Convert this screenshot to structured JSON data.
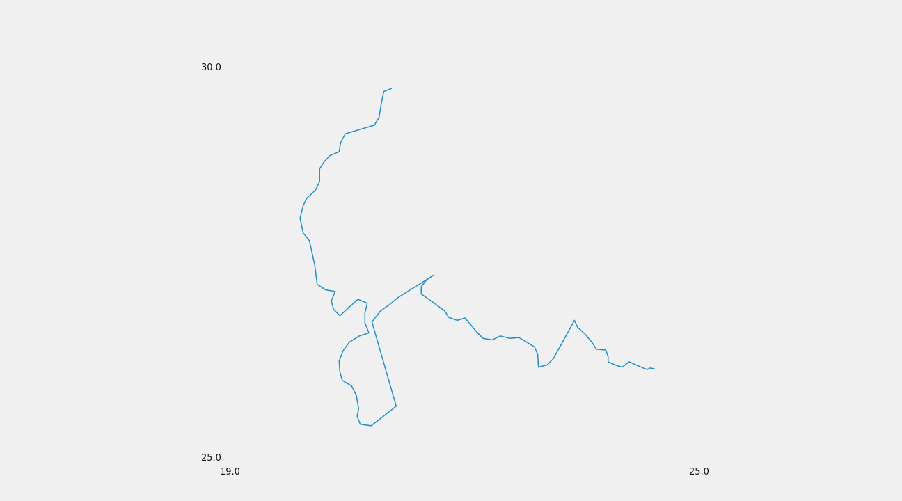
{
  "map": {
    "axes": {
      "x_min": 19.0,
      "x_max": 25.0,
      "y_min": 25.0,
      "y_max": 30.0,
      "x_ticks": [
        "19.0",
        "25.0"
      ],
      "y_ticks": [
        "30.0",
        "25.0"
      ]
    },
    "line_color": "#1a8fcb",
    "path": [
      [
        21.07,
        29.74
      ],
      [
        20.97,
        29.7
      ],
      [
        20.94,
        29.55
      ],
      [
        20.91,
        29.37
      ],
      [
        20.85,
        29.27
      ],
      [
        20.48,
        29.16
      ],
      [
        20.42,
        29.05
      ],
      [
        20.4,
        28.93
      ],
      [
        20.28,
        28.88
      ],
      [
        20.2,
        28.79
      ],
      [
        20.15,
        28.71
      ],
      [
        20.15,
        28.55
      ],
      [
        20.1,
        28.44
      ],
      [
        19.99,
        28.34
      ],
      [
        19.94,
        28.24
      ],
      [
        19.9,
        28.08
      ],
      [
        19.94,
        27.89
      ],
      [
        20.02,
        27.79
      ],
      [
        20.09,
        27.47
      ],
      [
        20.12,
        27.23
      ],
      [
        20.23,
        27.16
      ],
      [
        20.35,
        27.14
      ],
      [
        20.3,
        27.02
      ],
      [
        20.33,
        26.91
      ],
      [
        20.41,
        26.83
      ],
      [
        20.64,
        27.04
      ],
      [
        20.76,
        26.99
      ],
      [
        20.73,
        26.86
      ],
      [
        20.73,
        26.74
      ],
      [
        20.78,
        26.61
      ],
      [
        20.66,
        26.57
      ],
      [
        20.53,
        26.49
      ],
      [
        20.45,
        26.38
      ],
      [
        20.4,
        26.25
      ],
      [
        20.41,
        26.11
      ],
      [
        20.44,
        26.0
      ],
      [
        20.56,
        25.93
      ],
      [
        20.62,
        25.81
      ],
      [
        20.65,
        25.64
      ],
      [
        20.63,
        25.54
      ],
      [
        20.67,
        25.44
      ],
      [
        20.81,
        25.42
      ],
      [
        21.13,
        25.67
      ],
      [
        20.82,
        26.75
      ],
      [
        20.93,
        26.89
      ],
      [
        21.04,
        26.97
      ],
      [
        21.15,
        27.06
      ],
      [
        21.34,
        27.18
      ],
      [
        21.5,
        27.28
      ],
      [
        21.61,
        27.35
      ],
      [
        21.52,
        27.29
      ],
      [
        21.45,
        27.2
      ],
      [
        21.45,
        27.11
      ],
      [
        21.63,
        26.98
      ],
      [
        21.75,
        26.89
      ],
      [
        21.8,
        26.81
      ],
      [
        21.91,
        26.77
      ],
      [
        22.01,
        26.8
      ],
      [
        22.16,
        26.62
      ],
      [
        22.24,
        26.54
      ],
      [
        22.36,
        26.52
      ],
      [
        22.46,
        26.57
      ],
      [
        22.58,
        26.54
      ],
      [
        22.7,
        26.55
      ],
      [
        22.9,
        26.43
      ],
      [
        22.94,
        26.33
      ],
      [
        22.95,
        26.17
      ],
      [
        23.06,
        26.2
      ],
      [
        23.14,
        26.28
      ],
      [
        23.41,
        26.77
      ],
      [
        23.45,
        26.68
      ],
      [
        23.54,
        26.6
      ],
      [
        23.64,
        26.48
      ],
      [
        23.69,
        26.4
      ],
      [
        23.81,
        26.39
      ],
      [
        23.84,
        26.31
      ],
      [
        23.84,
        26.24
      ],
      [
        23.93,
        26.2
      ],
      [
        24.02,
        26.17
      ],
      [
        24.11,
        26.24
      ],
      [
        24.24,
        26.18
      ],
      [
        24.34,
        26.14
      ],
      [
        24.38,
        26.16
      ],
      [
        24.43,
        26.15
      ]
    ]
  }
}
